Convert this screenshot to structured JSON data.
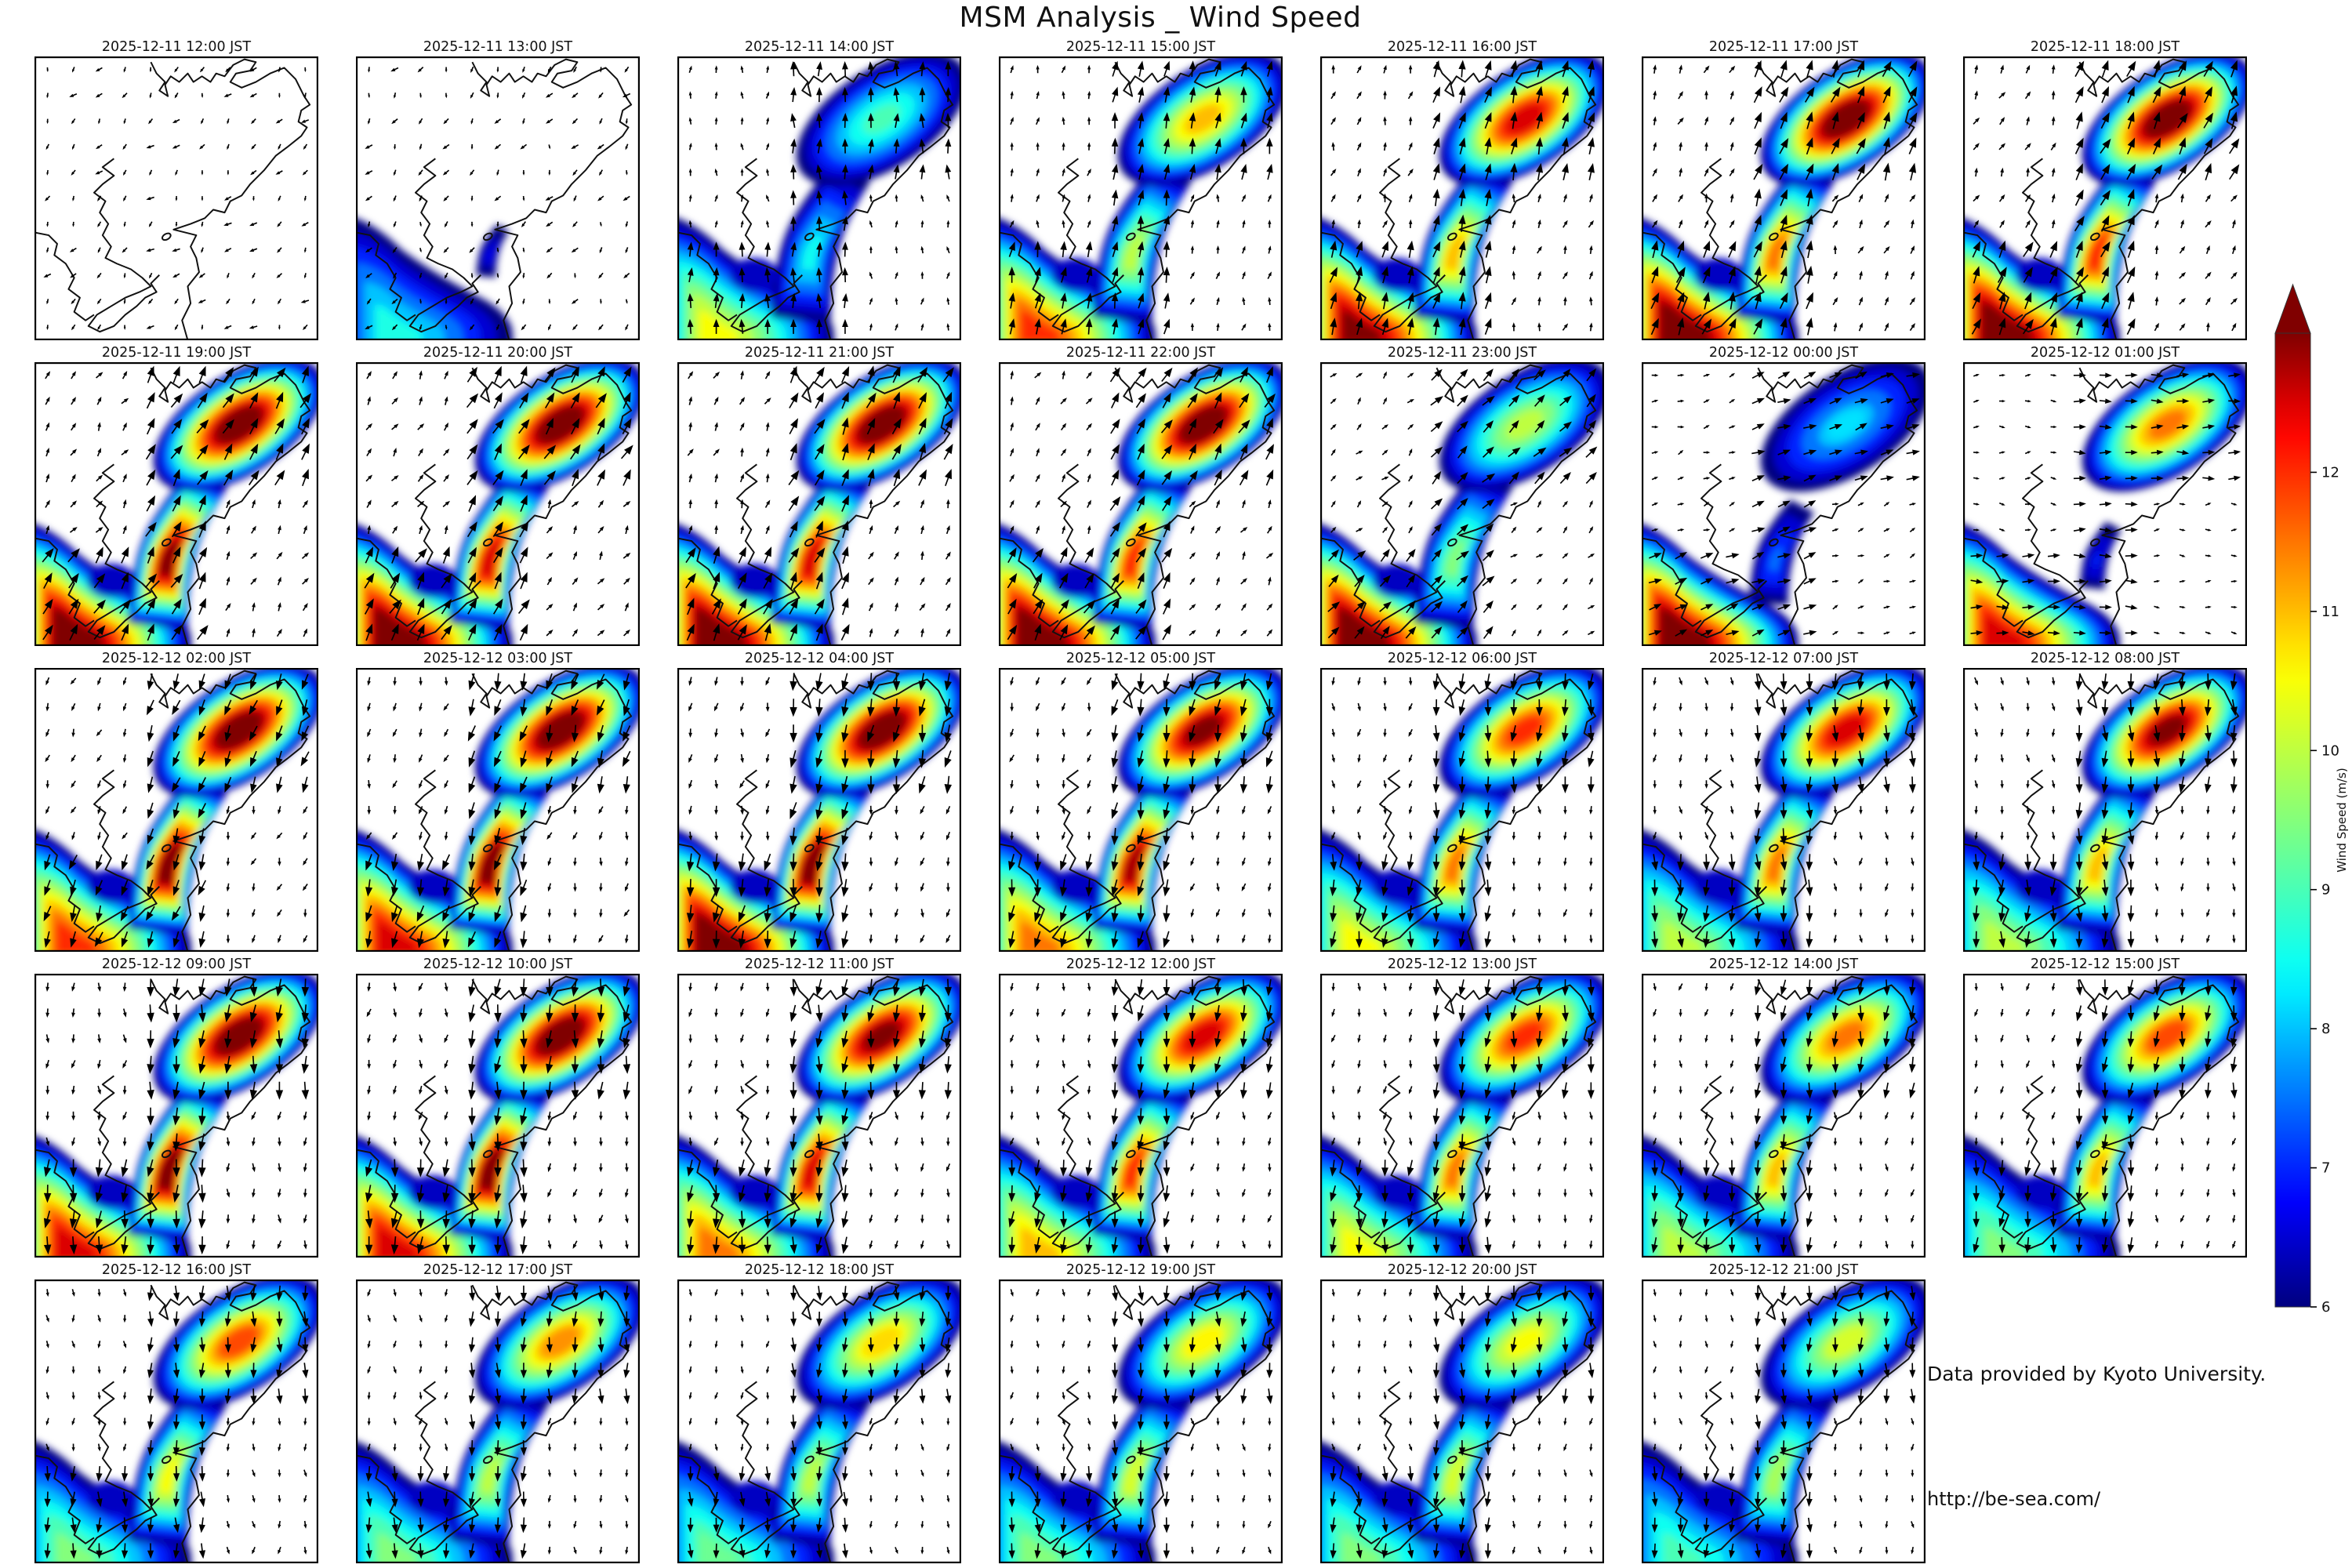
{
  "page_title": "MSM Analysis _ Wind Speed",
  "credits": {
    "provider": "Data provided by Kyoto University.",
    "url": "http://be-sea.com/"
  },
  "colorbar": {
    "label": "Wind Speed (m/s)",
    "ticks": [
      6,
      7,
      8,
      9,
      10,
      11,
      12
    ],
    "min": 6,
    "max": 13,
    "over_arrow": true,
    "jet_stops": [
      [
        0,
        "#000080"
      ],
      [
        0.11,
        "#0000ff"
      ],
      [
        0.34,
        "#00ffff"
      ],
      [
        0.65,
        "#ffff00"
      ],
      [
        0.9,
        "#ff0000"
      ],
      [
        1,
        "#800000"
      ]
    ]
  },
  "chart_data": {
    "type": "heatmap",
    "title": "MSM Analysis _ Wind Speed",
    "subtitle": "Hourly MSM analysis wind speed maps with wind-vector quivers over a coastal bay region",
    "units": "m/s",
    "colormap": "jet",
    "value_range": [
      6,
      13
    ],
    "grid": {
      "rows": 5,
      "cols": 7,
      "count": 34
    },
    "legend_position": "right",
    "panels": [
      {
        "time": "2025-12-11 12:00 JST",
        "peak_sw_mps": 0,
        "peak_mid_mps": 0,
        "peak_ne_mps": 0,
        "arrow_dir_deg": 215,
        "arrow_scale": 0.25
      },
      {
        "time": "2025-12-11 13:00 JST",
        "peak_sw_mps": 8.6,
        "peak_mid_mps": 6.8,
        "peak_ne_mps": 0,
        "arrow_dir_deg": 205,
        "arrow_scale": 0.3
      },
      {
        "time": "2025-12-11 14:00 JST",
        "peak_sw_mps": 10.5,
        "peak_mid_mps": 8.5,
        "peak_ne_mps": 9.0,
        "arrow_dir_deg": 0,
        "arrow_scale": 0.75
      },
      {
        "time": "2025-12-11 15:00 JST",
        "peak_sw_mps": 12.0,
        "peak_mid_mps": 10.0,
        "peak_ne_mps": 11.0,
        "arrow_dir_deg": 10,
        "arrow_scale": 0.85
      },
      {
        "time": "2025-12-11 16:00 JST",
        "peak_sw_mps": 13.0,
        "peak_mid_mps": 11.0,
        "peak_ne_mps": 12.5,
        "arrow_dir_deg": 15,
        "arrow_scale": 0.95
      },
      {
        "time": "2025-12-11 17:00 JST",
        "peak_sw_mps": 13.4,
        "peak_mid_mps": 11.5,
        "peak_ne_mps": 13.4,
        "arrow_dir_deg": 20,
        "arrow_scale": 1
      },
      {
        "time": "2025-12-11 18:00 JST",
        "peak_sw_mps": 13.4,
        "peak_mid_mps": 12.0,
        "peak_ne_mps": 13.4,
        "arrow_dir_deg": 25,
        "arrow_scale": 1
      },
      {
        "time": "2025-12-11 19:00 JST",
        "peak_sw_mps": 13.4,
        "peak_mid_mps": 13.0,
        "peak_ne_mps": 13.4,
        "arrow_dir_deg": 30,
        "arrow_scale": 1
      },
      {
        "time": "2025-12-11 20:00 JST",
        "peak_sw_mps": 13.4,
        "peak_mid_mps": 12.5,
        "peak_ne_mps": 13.4,
        "arrow_dir_deg": 30,
        "arrow_scale": 1
      },
      {
        "time": "2025-12-11 21:00 JST",
        "peak_sw_mps": 13.4,
        "peak_mid_mps": 12.5,
        "peak_ne_mps": 13.4,
        "arrow_dir_deg": 25,
        "arrow_scale": 1
      },
      {
        "time": "2025-12-11 22:00 JST",
        "peak_sw_mps": 13.4,
        "peak_mid_mps": 12.0,
        "peak_ne_mps": 13.4,
        "arrow_dir_deg": 30,
        "arrow_scale": 0.95
      },
      {
        "time": "2025-12-11 23:00 JST",
        "peak_sw_mps": 13.4,
        "peak_mid_mps": 9.5,
        "peak_ne_mps": 10.0,
        "arrow_dir_deg": 45,
        "arrow_scale": 0.8
      },
      {
        "time": "2025-12-12 00:00 JST",
        "peak_sw_mps": 13.4,
        "peak_mid_mps": 7.5,
        "peak_ne_mps": 8.2,
        "arrow_dir_deg": 70,
        "arrow_scale": 0.65
      },
      {
        "time": "2025-12-12 01:00 JST",
        "peak_sw_mps": 12.5,
        "peak_mid_mps": 7.0,
        "peak_ne_mps": 11.5,
        "arrow_dir_deg": 90,
        "arrow_scale": 0.55
      },
      {
        "time": "2025-12-12 02:00 JST",
        "peak_sw_mps": 12.0,
        "peak_mid_mps": 13.2,
        "peak_ne_mps": 13.4,
        "arrow_dir_deg": 200,
        "arrow_scale": 0.9
      },
      {
        "time": "2025-12-12 03:00 JST",
        "peak_sw_mps": 12.5,
        "peak_mid_mps": 13.2,
        "peak_ne_mps": 13.4,
        "arrow_dir_deg": 195,
        "arrow_scale": 0.95
      },
      {
        "time": "2025-12-12 04:00 JST",
        "peak_sw_mps": 13.4,
        "peak_mid_mps": 13.2,
        "peak_ne_mps": 13.4,
        "arrow_dir_deg": 190,
        "arrow_scale": 1
      },
      {
        "time": "2025-12-12 05:00 JST",
        "peak_sw_mps": 11.5,
        "peak_mid_mps": 12.8,
        "peak_ne_mps": 13.0,
        "arrow_dir_deg": 190,
        "arrow_scale": 0.95
      },
      {
        "time": "2025-12-12 06:00 JST",
        "peak_sw_mps": 10.5,
        "peak_mid_mps": 11.5,
        "peak_ne_mps": 12.0,
        "arrow_dir_deg": 185,
        "arrow_scale": 0.9
      },
      {
        "time": "2025-12-12 07:00 JST",
        "peak_sw_mps": 10.0,
        "peak_mid_mps": 11.5,
        "peak_ne_mps": 12.5,
        "arrow_dir_deg": 180,
        "arrow_scale": 0.9
      },
      {
        "time": "2025-12-12 08:00 JST",
        "peak_sw_mps": 10.0,
        "peak_mid_mps": 11.0,
        "peak_ne_mps": 13.0,
        "arrow_dir_deg": 180,
        "arrow_scale": 0.9
      },
      {
        "time": "2025-12-12 09:00 JST",
        "peak_sw_mps": 12.5,
        "peak_mid_mps": 13.2,
        "peak_ne_mps": 13.4,
        "arrow_dir_deg": 185,
        "arrow_scale": 1
      },
      {
        "time": "2025-12-12 10:00 JST",
        "peak_sw_mps": 12.5,
        "peak_mid_mps": 13.2,
        "peak_ne_mps": 13.4,
        "arrow_dir_deg": 185,
        "arrow_scale": 1
      },
      {
        "time": "2025-12-12 11:00 JST",
        "peak_sw_mps": 11.5,
        "peak_mid_mps": 12.5,
        "peak_ne_mps": 13.0,
        "arrow_dir_deg": 185,
        "arrow_scale": 0.95
      },
      {
        "time": "2025-12-12 12:00 JST",
        "peak_sw_mps": 11.0,
        "peak_mid_mps": 12.0,
        "peak_ne_mps": 12.5,
        "arrow_dir_deg": 185,
        "arrow_scale": 0.9
      },
      {
        "time": "2025-12-12 13:00 JST",
        "peak_sw_mps": 10.5,
        "peak_mid_mps": 11.5,
        "peak_ne_mps": 12.0,
        "arrow_dir_deg": 185,
        "arrow_scale": 0.9
      },
      {
        "time": "2025-12-12 14:00 JST",
        "peak_sw_mps": 10.0,
        "peak_mid_mps": 11.0,
        "peak_ne_mps": 11.5,
        "arrow_dir_deg": 185,
        "arrow_scale": 0.85
      },
      {
        "time": "2025-12-12 15:00 JST",
        "peak_sw_mps": 9.5,
        "peak_mid_mps": 11.0,
        "peak_ne_mps": 11.8,
        "arrow_dir_deg": 185,
        "arrow_scale": 0.85
      },
      {
        "time": "2025-12-12 16:00 JST",
        "peak_sw_mps": 9.5,
        "peak_mid_mps": 10.5,
        "peak_ne_mps": 11.8,
        "arrow_dir_deg": 180,
        "arrow_scale": 0.8
      },
      {
        "time": "2025-12-12 17:00 JST",
        "peak_sw_mps": 9.5,
        "peak_mid_mps": 10.0,
        "peak_ne_mps": 11.3,
        "arrow_dir_deg": 180,
        "arrow_scale": 0.8
      },
      {
        "time": "2025-12-12 18:00 JST",
        "peak_sw_mps": 9.3,
        "peak_mid_mps": 10.0,
        "peak_ne_mps": 10.8,
        "arrow_dir_deg": 180,
        "arrow_scale": 0.75
      },
      {
        "time": "2025-12-12 19:00 JST",
        "peak_sw_mps": 9.5,
        "peak_mid_mps": 10.2,
        "peak_ne_mps": 10.6,
        "arrow_dir_deg": 180,
        "arrow_scale": 0.8
      },
      {
        "time": "2025-12-12 20:00 JST",
        "peak_sw_mps": 9.5,
        "peak_mid_mps": 10.2,
        "peak_ne_mps": 10.5,
        "arrow_dir_deg": 180,
        "arrow_scale": 0.8
      },
      {
        "time": "2025-12-12 21:00 JST",
        "peak_sw_mps": 9.0,
        "peak_mid_mps": 9.8,
        "peak_ne_mps": 10.2,
        "arrow_dir_deg": 180,
        "arrow_scale": 0.75
      }
    ]
  }
}
